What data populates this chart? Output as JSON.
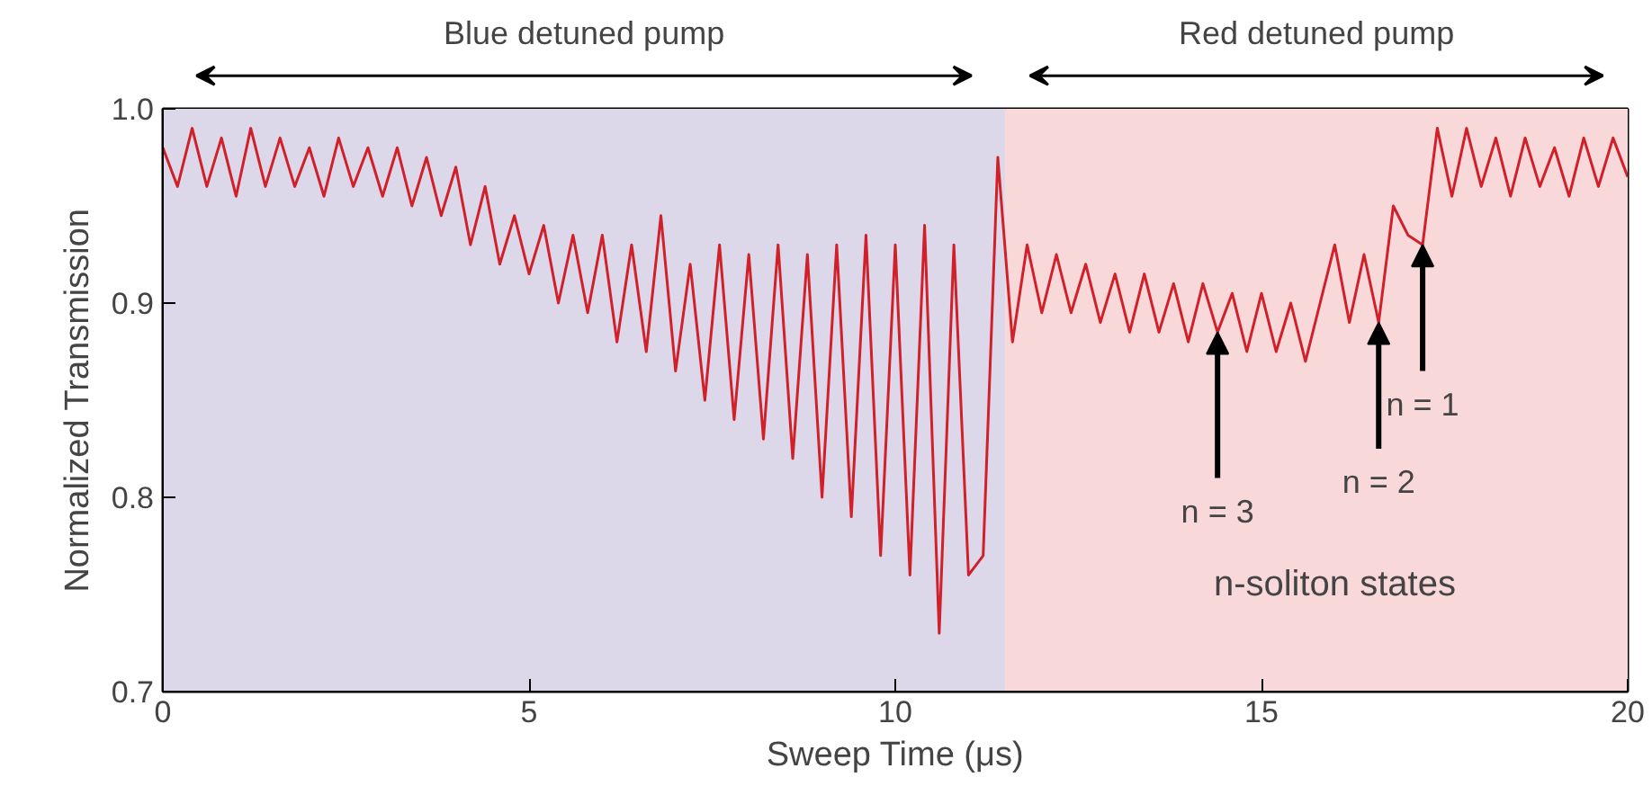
{
  "chart_data": {
    "type": "line",
    "xlabel": "Sweep Time (μs)",
    "ylabel": "Normalized Transmission",
    "x": [
      0,
      0.2,
      0.4,
      0.6,
      0.8,
      1.0,
      1.2,
      1.4,
      1.6,
      1.8,
      2.0,
      2.2,
      2.4,
      2.6,
      2.8,
      3.0,
      3.2,
      3.4,
      3.6,
      3.8,
      4.0,
      4.2,
      4.4,
      4.6,
      4.8,
      5.0,
      5.2,
      5.4,
      5.6,
      5.8,
      6.0,
      6.2,
      6.4,
      6.6,
      6.8,
      7.0,
      7.2,
      7.4,
      7.6,
      7.8,
      8.0,
      8.2,
      8.4,
      8.6,
      8.8,
      9.0,
      9.2,
      9.4,
      9.6,
      9.8,
      10.0,
      10.2,
      10.4,
      10.6,
      10.8,
      11.0,
      11.2,
      11.4,
      11.6,
      11.8,
      12.0,
      12.2,
      12.4,
      12.6,
      12.8,
      13.0,
      13.2,
      13.4,
      13.6,
      13.8,
      14.0,
      14.2,
      14.4,
      14.6,
      14.8,
      15.0,
      15.2,
      15.4,
      15.6,
      15.8,
      16.0,
      16.2,
      16.4,
      16.6,
      16.8,
      17.0,
      17.2,
      17.4,
      17.6,
      17.8,
      18.0,
      18.2,
      18.4,
      18.6,
      18.8,
      19.0,
      19.2,
      19.4,
      19.6,
      19.8,
      20.0
    ],
    "series": [
      {
        "color": "#d0202a",
        "values": [
          0.98,
          0.96,
          0.99,
          0.96,
          0.985,
          0.955,
          0.99,
          0.96,
          0.985,
          0.96,
          0.98,
          0.955,
          0.985,
          0.96,
          0.98,
          0.955,
          0.98,
          0.95,
          0.975,
          0.945,
          0.97,
          0.93,
          0.96,
          0.92,
          0.945,
          0.915,
          0.94,
          0.9,
          0.935,
          0.895,
          0.935,
          0.88,
          0.93,
          0.875,
          0.945,
          0.865,
          0.92,
          0.85,
          0.93,
          0.84,
          0.925,
          0.83,
          0.93,
          0.82,
          0.925,
          0.8,
          0.93,
          0.79,
          0.935,
          0.77,
          0.93,
          0.76,
          0.94,
          0.73,
          0.93,
          0.76,
          0.77,
          0.975,
          0.88,
          0.93,
          0.895,
          0.925,
          0.895,
          0.92,
          0.89,
          0.915,
          0.885,
          0.915,
          0.885,
          0.91,
          0.88,
          0.91,
          0.885,
          0.905,
          0.875,
          0.905,
          0.875,
          0.9,
          0.87,
          0.9,
          0.93,
          0.89,
          0.925,
          0.89,
          0.95,
          0.935,
          0.93,
          0.99,
          0.955,
          0.99,
          0.96,
          0.985,
          0.955,
          0.985,
          0.96,
          0.98,
          0.955,
          0.985,
          0.96,
          0.985,
          0.965
        ]
      }
    ],
    "xlim": [
      0,
      20
    ],
    "xticks": [
      0,
      5,
      10,
      15,
      20
    ],
    "ylim": [
      0.7,
      1.0
    ],
    "yticks": [
      0.7,
      0.8,
      0.9,
      {
        "value": 1.0,
        "label": "1.0"
      }
    ],
    "bands": [
      {
        "axis": "x",
        "from": 0,
        "to": 11.5,
        "label": "Blue detuned pump",
        "color": "#dcd8ea"
      },
      {
        "axis": "x",
        "from": 11.5,
        "to": 20,
        "label": "Red detuned pump",
        "color": "#f9d8da"
      }
    ],
    "annotations": [
      {
        "text": "n = 3",
        "x": 14.4,
        "y": 0.885
      },
      {
        "text": "n = 2",
        "x": 16.6,
        "y": 0.89
      },
      {
        "text": "n = 1",
        "x": 17.2,
        "y": 0.93
      },
      "n-soliton states"
    ],
    "line_style": "solid",
    "marker": "none"
  }
}
